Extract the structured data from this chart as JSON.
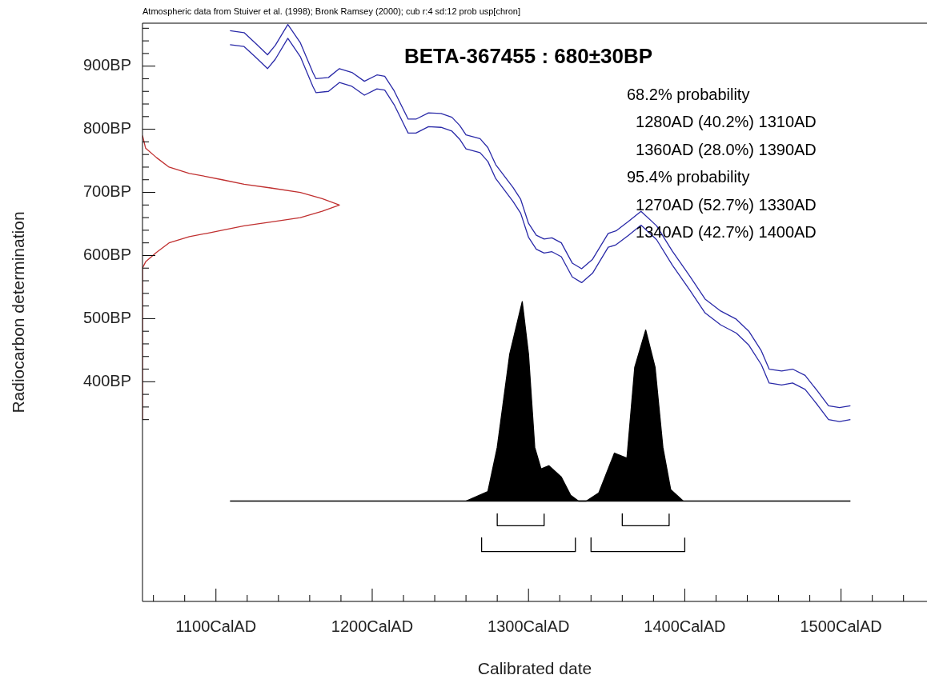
{
  "chart_data": {
    "type": "line",
    "title": "BETA-367455 : 680±30BP",
    "xlabel": "Calibrated date",
    "ylabel": "Radiocarbon determination",
    "annotations": [
      "Atmospheric data from Stuiver et al. (1998); Bronk Ramsey (2000); cub r:4 sd:12 prob usp[chron]",
      "68.2% probability",
      "  1280AD (40.2%) 1310AD",
      "  1360AD (28.0%) 1390AD",
      "95.4% probability",
      "  1270AD (52.7%) 1330AD",
      "  1340AD (42.7%) 1400AD"
    ],
    "xlim": [
      1053,
      1555
    ],
    "xticks": [
      {
        "value": 1060,
        "label": null
      },
      {
        "value": 1080,
        "label": null
      },
      {
        "value": 1100,
        "label": "1100CalAD"
      },
      {
        "value": 1120,
        "label": null
      },
      {
        "value": 1140,
        "label": null
      },
      {
        "value": 1160,
        "label": null
      },
      {
        "value": 1180,
        "label": null
      },
      {
        "value": 1200,
        "label": "1200CalAD"
      },
      {
        "value": 1220,
        "label": null
      },
      {
        "value": 1240,
        "label": null
      },
      {
        "value": 1260,
        "label": null
      },
      {
        "value": 1280,
        "label": null
      },
      {
        "value": 1300,
        "label": "1300CalAD"
      },
      {
        "value": 1320,
        "label": null
      },
      {
        "value": 1340,
        "label": null
      },
      {
        "value": 1360,
        "label": null
      },
      {
        "value": 1380,
        "label": null
      },
      {
        "value": 1400,
        "label": "1400CalAD"
      },
      {
        "value": 1420,
        "label": null
      },
      {
        "value": 1440,
        "label": null
      },
      {
        "value": 1460,
        "label": null
      },
      {
        "value": 1480,
        "label": null
      },
      {
        "value": 1500,
        "label": "1500CalAD"
      },
      {
        "value": 1520,
        "label": null
      },
      {
        "value": 1540,
        "label": null
      }
    ],
    "ylim": [
      52,
      968
    ],
    "yticks": [
      {
        "value": 340,
        "label": null
      },
      {
        "value": 360,
        "label": null
      },
      {
        "value": 380,
        "label": null
      },
      {
        "value": 400,
        "label": "400BP"
      },
      {
        "value": 420,
        "label": null
      },
      {
        "value": 440,
        "label": null
      },
      {
        "value": 460,
        "label": null
      },
      {
        "value": 480,
        "label": null
      },
      {
        "value": 500,
        "label": "500BP"
      },
      {
        "value": 520,
        "label": null
      },
      {
        "value": 540,
        "label": null
      },
      {
        "value": 560,
        "label": null
      },
      {
        "value": 580,
        "label": null
      },
      {
        "value": 600,
        "label": "600BP"
      },
      {
        "value": 620,
        "label": null
      },
      {
        "value": 640,
        "label": null
      },
      {
        "value": 660,
        "label": null
      },
      {
        "value": 680,
        "label": null
      },
      {
        "value": 700,
        "label": "700BP"
      },
      {
        "value": 720,
        "label": null
      },
      {
        "value": 740,
        "label": null
      },
      {
        "value": 760,
        "label": null
      },
      {
        "value": 780,
        "label": null
      },
      {
        "value": 800,
        "label": "800BP"
      },
      {
        "value": 820,
        "label": null
      },
      {
        "value": 840,
        "label": null
      },
      {
        "value": 860,
        "label": null
      },
      {
        "value": 880,
        "label": null
      },
      {
        "value": 900,
        "label": "900BP"
      },
      {
        "value": 920,
        "label": null
      },
      {
        "value": 940,
        "label": null
      },
      {
        "value": 960,
        "label": null
      }
    ],
    "grid": false,
    "legend": false,
    "marker": "none",
    "line_style": "solid",
    "series": [
      {
        "type": "line",
        "color": "#2a2aa8",
        "x": [
          1109,
          1118,
          1125,
          1133,
          1138,
          1146,
          1154,
          1162,
          1164,
          1172,
          1179,
          1187,
          1195,
          1203,
          1208,
          1214,
          1223,
          1228,
          1236,
          1244,
          1251,
          1256,
          1260,
          1269,
          1274,
          1279,
          1290,
          1295,
          1300,
          1305,
          1310,
          1315,
          1321,
          1328,
          1334,
          1341,
          1351,
          1356,
          1364,
          1372,
          1382,
          1392,
          1403,
          1413,
          1423,
          1433,
          1441,
          1449,
          1454,
          1462,
          1469,
          1477,
          1485,
          1492,
          1499,
          1506
        ],
        "values": [
          956,
          953,
          937,
          918,
          933,
          966,
          937,
          890,
          880,
          882,
          896,
          890,
          876,
          886,
          884,
          861,
          816,
          816,
          826,
          825,
          819,
          806,
          791,
          785,
          771,
          744,
          708,
          689,
          651,
          632,
          626,
          628,
          620,
          588,
          579,
          594,
          635,
          639,
          654,
          670,
          647,
          607,
          568,
          531,
          512,
          499,
          480,
          449,
          420,
          417,
          420,
          410,
          385,
          362,
          359,
          362
        ]
      },
      {
        "type": "line",
        "color": "#2a2aa8",
        "x": [
          1109,
          1118,
          1125,
          1133,
          1138,
          1146,
          1154,
          1162,
          1164,
          1172,
          1179,
          1187,
          1195,
          1203,
          1208,
          1214,
          1223,
          1228,
          1236,
          1244,
          1251,
          1256,
          1260,
          1269,
          1274,
          1279,
          1290,
          1295,
          1300,
          1305,
          1310,
          1315,
          1321,
          1328,
          1334,
          1341,
          1351,
          1356,
          1364,
          1372,
          1382,
          1392,
          1403,
          1413,
          1423,
          1433,
          1441,
          1449,
          1454,
          1462,
          1469,
          1477,
          1485,
          1492,
          1499,
          1506
        ],
        "values": [
          934,
          931,
          915,
          896,
          911,
          944,
          915,
          868,
          858,
          860,
          874,
          868,
          854,
          864,
          862,
          839,
          794,
          794,
          804,
          803,
          797,
          784,
          769,
          763,
          749,
          722,
          686,
          667,
          629,
          610,
          604,
          606,
          598,
          566,
          557,
          572,
          613,
          617,
          632,
          648,
          625,
          585,
          546,
          509,
          490,
          477,
          458,
          427,
          398,
          395,
          398,
          388,
          363,
          340,
          337,
          340
        ]
      },
      {
        "type": "line",
        "color": "#c03030",
        "x": [
          1053,
          1053,
          1055,
          1062,
          1070,
          1083,
          1094,
          1104,
          1118,
          1135,
          1154,
          1168,
          1179,
          1168,
          1154,
          1135,
          1118,
          1104,
          1094,
          1083,
          1070,
          1062,
          1055,
          1053
        ],
        "values": [
          340,
          580,
          590,
          605,
          620,
          630,
          635,
          640,
          647,
          653,
          660,
          670,
          680,
          690,
          700,
          707,
          713,
          720,
          725,
          730,
          740,
          755,
          770,
          790
        ]
      },
      {
        "type": "area",
        "color": "#000000",
        "x": [
          1260,
          1274,
          1280,
          1288,
          1296,
          1300,
          1304,
          1308,
          1313,
          1321,
          1327,
          1332,
          1337,
          1345,
          1355,
          1363,
          1368,
          1375,
          1381,
          1386,
          1391,
          1399
        ],
        "values": [
          211,
          226,
          296,
          444,
          527,
          444,
          296,
          262,
          267,
          249,
          220,
          211,
          211,
          224,
          287,
          279,
          423,
          482,
          423,
          296,
          229,
          211
        ]
      },
      {
        "type": "line",
        "color": "#000000",
        "x": [
          1109,
          1506
        ],
        "values": [
          211,
          211
        ]
      },
      {
        "type": "line",
        "color": "#000000",
        "x": [
          1280,
          1280,
          1310,
          1310,
          1335,
          1360,
          1360,
          1390,
          1390
        ],
        "values": [
          191,
          172,
          172,
          191,
          null,
          191,
          172,
          172,
          191
        ]
      },
      {
        "type": "line",
        "color": "#000000",
        "x": [
          1270,
          1270,
          1330,
          1330,
          1335,
          1340,
          1340,
          1400,
          1400
        ],
        "values": [
          153,
          131,
          131,
          153,
          null,
          153,
          131,
          131,
          153
        ]
      }
    ]
  }
}
